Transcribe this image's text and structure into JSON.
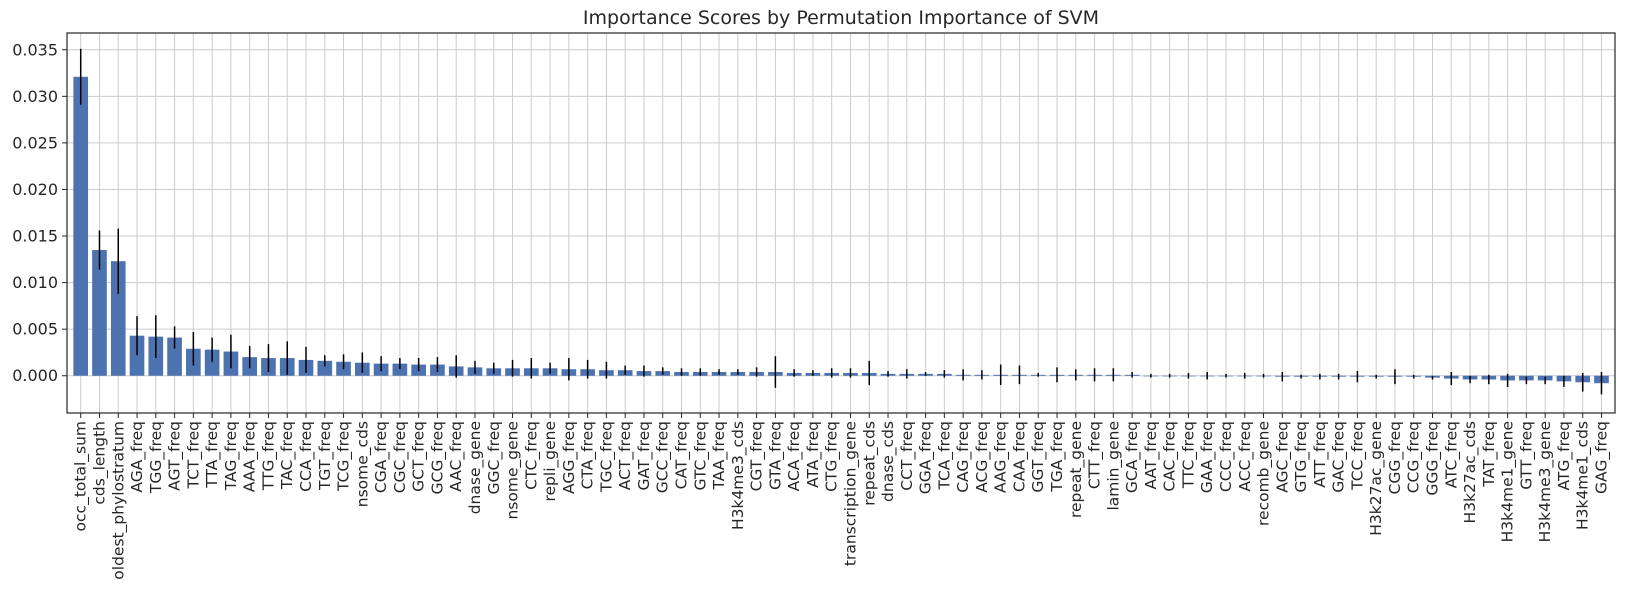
{
  "chart_data": {
    "type": "bar",
    "title": "Importance Scores by Permutation Importance of SVM",
    "xlabel": "",
    "ylabel": "",
    "ylim": [
      -0.004,
      0.0368
    ],
    "yticks": [
      0.0,
      0.005,
      0.01,
      0.015,
      0.02,
      0.025,
      0.03,
      0.035
    ],
    "ytick_labels": [
      "0.000",
      "0.005",
      "0.010",
      "0.015",
      "0.020",
      "0.025",
      "0.030",
      "0.035"
    ],
    "grid": true,
    "bar_color": "#4c72b0",
    "error_color": "#000000",
    "categories": [
      "occ_total_sum",
      "cds_length",
      "oldest_phylostratum",
      "AGA_freq",
      "TGG_freq",
      "AGT_freq",
      "TCT_freq",
      "TTA_freq",
      "TAG_freq",
      "AAA_freq",
      "TTG_freq",
      "TAC_freq",
      "CCA_freq",
      "TGT_freq",
      "TCG_freq",
      "nsome_cds",
      "CGA_freq",
      "CGC_freq",
      "GCT_freq",
      "GCG_freq",
      "AAC_freq",
      "dnase_gene",
      "GGC_freq",
      "nsome_gene",
      "CTC_freq",
      "repli_gene",
      "AGG_freq",
      "CTA_freq",
      "TGC_freq",
      "ACT_freq",
      "GAT_freq",
      "GCC_freq",
      "CAT_freq",
      "GTC_freq",
      "TAA_freq",
      "H3k4me3_cds",
      "CGT_freq",
      "GTA_freq",
      "ACA_freq",
      "ATA_freq",
      "CTG_freq",
      "transcription_gene",
      "repeat_cds",
      "dnase_cds",
      "CCT_freq",
      "GGA_freq",
      "TCA_freq",
      "CAG_freq",
      "ACG_freq",
      "AAG_freq",
      "CAA_freq",
      "GGT_freq",
      "TGA_freq",
      "repeat_gene",
      "CTT_freq",
      "lamin_gene",
      "GCA_freq",
      "AAT_freq",
      "CAC_freq",
      "TTC_freq",
      "GAA_freq",
      "CCC_freq",
      "ACC_freq",
      "recomb_gene",
      "AGC_freq",
      "GTG_freq",
      "ATT_freq",
      "GAC_freq",
      "TCC_freq",
      "H3k27ac_gene",
      "CGG_freq",
      "CCG_freq",
      "GGG_freq",
      "ATC_freq",
      "H3k27ac_cds",
      "TAT_freq",
      "H3k4me1_gene",
      "GTT_freq",
      "H3k4me3_gene",
      "ATG_freq",
      "H3k4me1_cds",
      "GAG_freq"
    ],
    "values": [
      0.0321,
      0.0135,
      0.0123,
      0.0043,
      0.0042,
      0.0041,
      0.0029,
      0.0028,
      0.0026,
      0.002,
      0.0019,
      0.0019,
      0.0017,
      0.0016,
      0.0015,
      0.0014,
      0.0013,
      0.0013,
      0.0012,
      0.0012,
      0.001,
      0.0009,
      0.0008,
      0.0008,
      0.0008,
      0.0008,
      0.0007,
      0.0007,
      0.0006,
      0.0006,
      0.0005,
      0.0005,
      0.0004,
      0.0004,
      0.0004,
      0.0004,
      0.0004,
      0.0004,
      0.0003,
      0.0003,
      0.0003,
      0.0003,
      0.0003,
      0.0002,
      0.0002,
      0.0002,
      0.0002,
      0.0001,
      0.0001,
      0.0001,
      0.0001,
      0.0001,
      0.0001,
      0.0001,
      0.0001,
      0.0001,
      0.0001,
      0.0,
      0.0,
      0.0,
      0.0,
      0.0,
      0.0,
      0.0,
      -0.0001,
      -0.0001,
      -0.0001,
      -0.0001,
      -0.0001,
      -0.0001,
      -0.0001,
      -0.0001,
      -0.0002,
      -0.0003,
      -0.0004,
      -0.0004,
      -0.0005,
      -0.0005,
      -0.0005,
      -0.0006,
      -0.0007,
      -0.0008
    ],
    "errors": [
      0.003,
      0.0021,
      0.0035,
      0.0021,
      0.0023,
      0.0012,
      0.0018,
      0.0013,
      0.0018,
      0.0012,
      0.0015,
      0.0018,
      0.0014,
      0.0006,
      0.0008,
      0.0011,
      0.0008,
      0.0006,
      0.0007,
      0.0008,
      0.0012,
      0.0007,
      0.0006,
      0.0009,
      0.0011,
      0.0006,
      0.0012,
      0.001,
      0.0009,
      0.0005,
      0.0006,
      0.0004,
      0.0004,
      0.0004,
      0.0003,
      0.0003,
      0.0005,
      0.0017,
      0.0004,
      0.0003,
      0.0005,
      0.0005,
      0.0013,
      0.0003,
      0.0005,
      0.0002,
      0.0004,
      0.0006,
      0.0005,
      0.0011,
      0.001,
      0.0002,
      0.0008,
      0.0006,
      0.0007,
      0.0007,
      0.0003,
      0.0002,
      0.0002,
      0.0003,
      0.0004,
      0.0002,
      0.0003,
      0.0002,
      0.0005,
      0.0002,
      0.0003,
      0.0003,
      0.0006,
      0.0002,
      0.0008,
      0.0002,
      0.0002,
      0.0007,
      0.0004,
      0.0005,
      0.0007,
      0.0004,
      0.0004,
      0.0006,
      0.001,
      0.0012
    ]
  }
}
